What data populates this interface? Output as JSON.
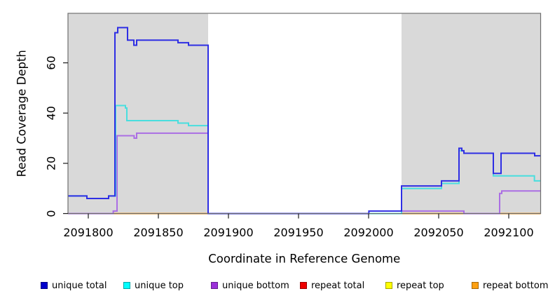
{
  "chart_data": {
    "type": "line",
    "step": "post",
    "title": "",
    "xlabel": "Coordinate in Reference Genome",
    "ylabel": "Read Coverage Depth",
    "xlim": [
      2091785.5,
      2092122.75
    ],
    "ylim": [
      0,
      79.7
    ],
    "x_ticks": [
      2091800,
      2091850,
      2091900,
      2091950,
      2092000,
      2092050,
      2092100
    ],
    "y_ticks": [
      0,
      20,
      40,
      60
    ],
    "grid": false,
    "background_color": "#ffffff",
    "shaded_region_color": "#d9d9d9",
    "shaded_regions": [
      {
        "x0": 2091785.5,
        "x1": 2091885.5
      },
      {
        "x0": 2092023.5,
        "x1": 2092122.75
      }
    ],
    "legend_position": "bottom",
    "series": [
      {
        "name": "repeat total",
        "color": "#dd1111",
        "points": [
          [
            2091785.5,
            0
          ]
        ]
      },
      {
        "name": "repeat top",
        "color": "#ffff33",
        "points": [
          [
            2091785.5,
            0
          ]
        ]
      },
      {
        "name": "repeat bottom",
        "color": "#ff9d18",
        "points": [
          [
            2091785.5,
            0
          ]
        ]
      },
      {
        "name": "unique bottom",
        "color": "#ab6ee4",
        "points": [
          [
            2091785.5,
            0
          ],
          [
            2091817.8,
            1
          ],
          [
            2091820.5,
            31
          ],
          [
            2091832.7,
            30
          ],
          [
            2091834.5,
            32
          ],
          [
            2091885.5,
            0
          ],
          [
            2092023.5,
            1
          ],
          [
            2092068,
            0
          ],
          [
            2092093.5,
            8
          ],
          [
            2092095,
            9
          ]
        ]
      },
      {
        "name": "unique top",
        "color": "#49dede",
        "points": [
          [
            2091785.5,
            7
          ],
          [
            2091799,
            6
          ],
          [
            2091814.5,
            7
          ],
          [
            2091819.5,
            43
          ],
          [
            2091826.5,
            42
          ],
          [
            2091827.5,
            37
          ],
          [
            2091864,
            36
          ],
          [
            2091871.5,
            35
          ],
          [
            2091885.5,
            0
          ],
          [
            2092023.5,
            10
          ],
          [
            2092052,
            12
          ],
          [
            2092064.5,
            25
          ],
          [
            2092068,
            24
          ],
          [
            2092089,
            15
          ],
          [
            2092118.3,
            13
          ]
        ]
      },
      {
        "name": "unique total",
        "color": "#2e2ee4",
        "points": [
          [
            2091785.5,
            7
          ],
          [
            2091799,
            6
          ],
          [
            2091814.5,
            7
          ],
          [
            2091819,
            72
          ],
          [
            2091821,
            74
          ],
          [
            2091828,
            69
          ],
          [
            2091832.5,
            67
          ],
          [
            2091834.5,
            69
          ],
          [
            2091864,
            68
          ],
          [
            2091871.5,
            67
          ],
          [
            2091885.5,
            0
          ],
          [
            2092000.2,
            1
          ],
          [
            2092023.5,
            11
          ],
          [
            2092052,
            13
          ],
          [
            2092064.5,
            26
          ],
          [
            2092066.5,
            25
          ],
          [
            2092068,
            24
          ],
          [
            2092089,
            16
          ],
          [
            2092094.5,
            24
          ],
          [
            2092118.5,
            23
          ]
        ]
      }
    ],
    "legend": [
      {
        "label": "unique total",
        "color": "#0000cc"
      },
      {
        "label": "unique top",
        "color": "#00ffff"
      },
      {
        "label": "unique bottom",
        "color": "#9b30d9"
      },
      {
        "label": "repeat total",
        "color": "#ee0000"
      },
      {
        "label": "repeat top",
        "color": "#ffff00"
      },
      {
        "label": "repeat bottom",
        "color": "#ffa011"
      }
    ]
  }
}
